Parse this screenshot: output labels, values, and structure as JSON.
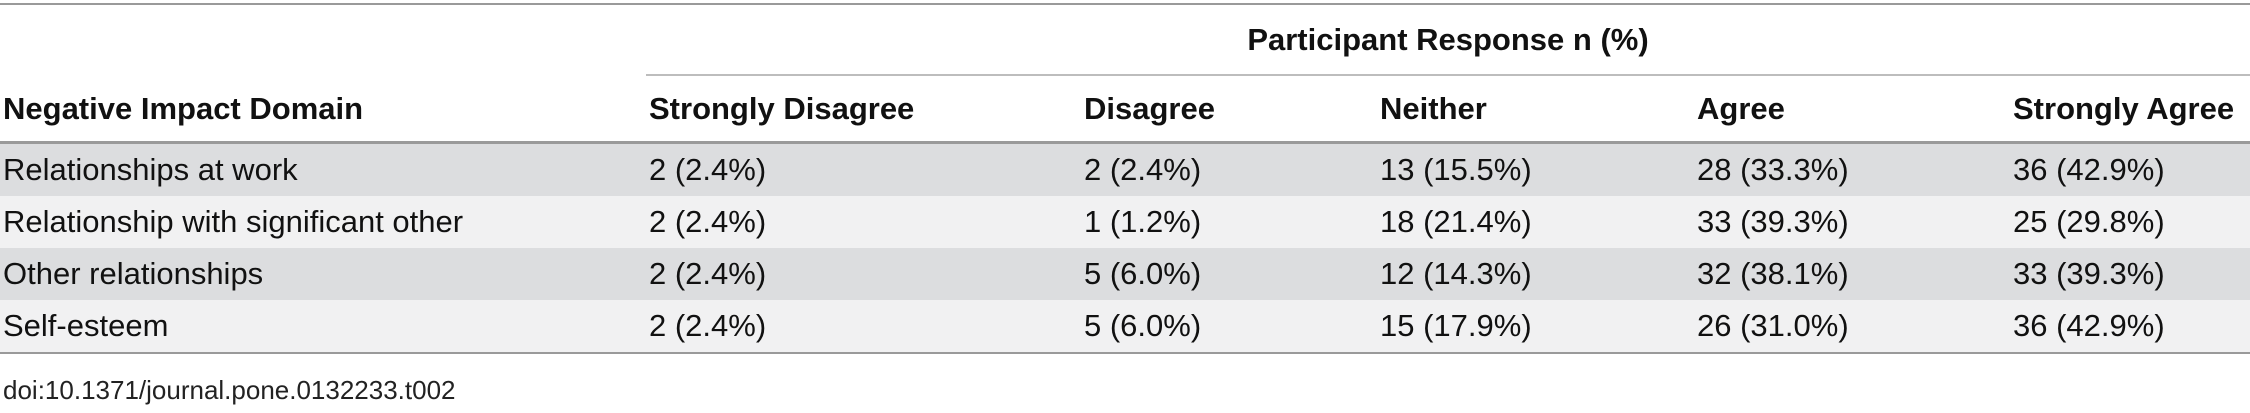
{
  "table": {
    "group_header": "Participant Response n (%)",
    "columns": [
      "Negative Impact Domain",
      "Strongly Disagree",
      "Disagree",
      "Neither",
      "Agree",
      "Strongly Agree"
    ],
    "rows": [
      [
        "Relationships at work",
        "2 (2.4%)",
        "2 (2.4%)",
        "13 (15.5%)",
        "28 (33.3%)",
        "36 (42.9%)"
      ],
      [
        "Relationship with significant other",
        "2 (2.4%)",
        "1 (1.2%)",
        "18 (21.4%)",
        "33 (39.3%)",
        "25 (29.8%)"
      ],
      [
        "Other relationships",
        "2 (2.4%)",
        "5 (6.0%)",
        "12 (14.3%)",
        "32 (38.1%)",
        "33 (39.3%)"
      ],
      [
        "Self-esteem",
        "2 (2.4%)",
        "5 (6.0%)",
        "15 (17.9%)",
        "26 (31.0%)",
        "36 (42.9%)"
      ]
    ]
  },
  "doi": "doi:10.1371/journal.pone.0132233.t002",
  "colors": {
    "row_shade_dark": "#dcdddf",
    "row_shade_light": "#f1f1f2",
    "rule": "#9a9a9a"
  }
}
